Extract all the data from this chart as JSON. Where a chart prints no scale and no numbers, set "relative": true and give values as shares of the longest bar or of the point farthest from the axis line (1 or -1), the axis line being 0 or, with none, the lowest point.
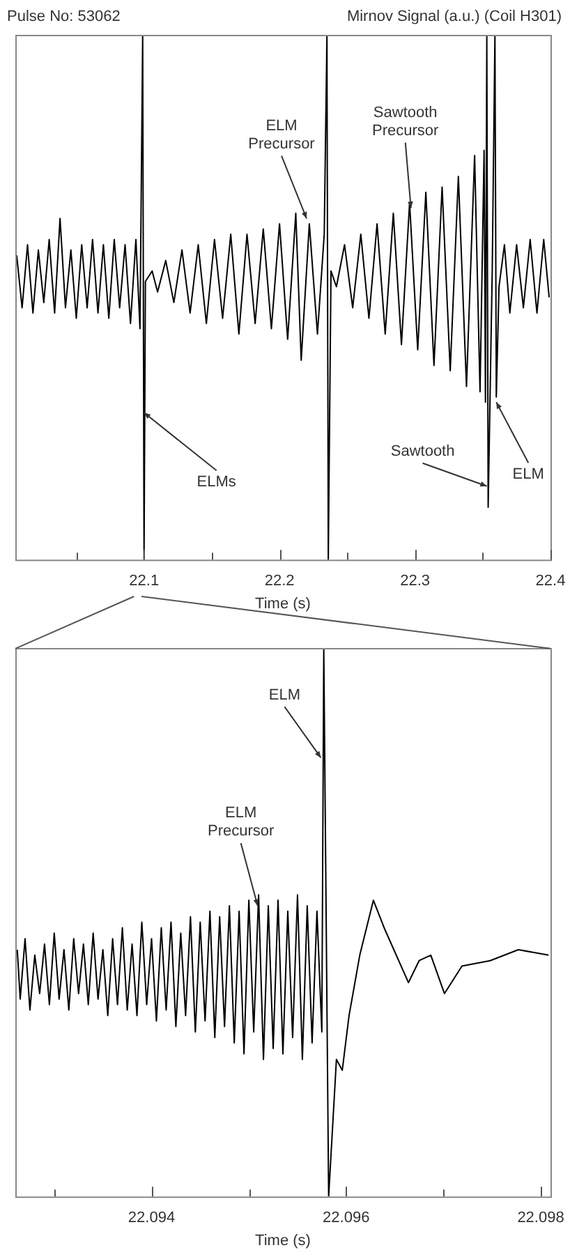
{
  "chart_data": [
    {
      "type": "line",
      "title": "Pulse No: 53062",
      "ylabel": "Mirnov Signal (a.u.) (Coil H301)",
      "xlabel": "Time (s)",
      "relative": true,
      "legend": false,
      "grid": false,
      "marker": "none",
      "line_style": "solid",
      "xlim": [
        22.005,
        22.4
      ],
      "xticks": [
        {
          "value": 22.05,
          "label": null
        },
        22.1,
        {
          "value": 22.15,
          "label": null
        },
        22.2,
        {
          "value": 22.25,
          "label": null
        },
        22.3,
        {
          "value": 22.35,
          "label": null
        },
        22.4
      ],
      "annotations": [
        {
          "text": "ELM Precursor",
          "x": 22.22,
          "y": 0.65
        },
        {
          "text": "Sawtooth Precursor",
          "x": 22.297,
          "y": 0.67
        },
        {
          "text": "ELMs",
          "x": 22.1,
          "y": 0.28
        },
        {
          "text": "Sawtooth",
          "x": 22.353,
          "y": 0.14
        },
        {
          "text": "ELM",
          "x": 22.36,
          "y": 0.3
        }
      ],
      "series": [
        {
          "color": "#000000",
          "x": [
            22.006,
            22.01,
            22.014,
            22.018,
            22.022,
            22.026,
            22.03,
            22.034,
            22.038,
            22.042,
            22.046,
            22.05,
            22.054,
            22.058,
            22.062,
            22.066,
            22.07,
            22.074,
            22.078,
            22.082,
            22.086,
            22.09,
            22.094,
            22.097,
            22.099,
            22.1,
            22.101,
            22.106,
            22.11,
            22.116,
            22.122,
            22.128,
            22.134,
            22.14,
            22.146,
            22.152,
            22.158,
            22.164,
            22.17,
            22.176,
            22.182,
            22.188,
            22.194,
            22.2,
            22.206,
            22.212,
            22.216,
            22.222,
            22.228,
            22.233,
            22.235,
            22.236,
            22.238,
            22.242,
            22.248,
            22.254,
            22.26,
            22.266,
            22.272,
            22.278,
            22.284,
            22.29,
            22.296,
            22.302,
            22.308,
            22.314,
            22.32,
            22.326,
            22.332,
            22.338,
            22.344,
            22.348,
            22.351,
            22.352,
            22.353,
            22.354,
            22.357,
            22.359,
            22.36,
            22.362,
            22.366,
            22.37,
            22.375,
            22.38,
            22.385,
            22.39,
            22.395,
            22.399
          ],
          "values": [
            0.58,
            0.48,
            0.6,
            0.47,
            0.59,
            0.49,
            0.61,
            0.47,
            0.65,
            0.48,
            0.59,
            0.46,
            0.6,
            0.48,
            0.61,
            0.47,
            0.6,
            0.46,
            0.61,
            0.48,
            0.6,
            0.45,
            0.61,
            0.44,
            1.0,
            0.0,
            0.53,
            0.55,
            0.51,
            0.57,
            0.49,
            0.59,
            0.47,
            0.6,
            0.45,
            0.61,
            0.46,
            0.62,
            0.43,
            0.62,
            0.45,
            0.63,
            0.44,
            0.64,
            0.42,
            0.66,
            0.38,
            0.64,
            0.43,
            0.62,
            1.0,
            0.0,
            0.55,
            0.52,
            0.6,
            0.48,
            0.62,
            0.46,
            0.64,
            0.43,
            0.66,
            0.41,
            0.68,
            0.4,
            0.7,
            0.37,
            0.71,
            0.36,
            0.73,
            0.33,
            0.77,
            0.32,
            0.78,
            0.3,
            1.0,
            0.1,
            0.55,
            1.0,
            0.31,
            0.52,
            0.6,
            0.47,
            0.6,
            0.48,
            0.61,
            0.47,
            0.61,
            0.5
          ]
        }
      ]
    },
    {
      "type": "line",
      "xlabel": "Time (s)",
      "relative": true,
      "legend": false,
      "grid": false,
      "marker": "none",
      "line_style": "solid",
      "xlim": [
        22.0926,
        22.0981
      ],
      "xticks": [
        {
          "value": 22.093,
          "label": null
        },
        22.094,
        {
          "value": 22.095,
          "label": null
        },
        22.096,
        {
          "value": 22.097,
          "label": null
        },
        22.098
      ],
      "annotations": [
        {
          "text": "ELM",
          "x": 22.09574,
          "y": 0.8
        },
        {
          "text": "ELM Precursor",
          "x": 22.09509,
          "y": 0.53
        }
      ],
      "series": [
        {
          "color": "#000000",
          "x": [
            22.09262,
            22.09265,
            22.0927,
            22.09275,
            22.0928,
            22.09285,
            22.0929,
            22.09295,
            22.093,
            22.09305,
            22.0931,
            22.09315,
            22.0932,
            22.09325,
            22.0933,
            22.09335,
            22.0934,
            22.09345,
            22.0935,
            22.09355,
            22.0936,
            22.09365,
            22.0937,
            22.09375,
            22.0938,
            22.09385,
            22.0939,
            22.09395,
            22.094,
            22.09405,
            22.0941,
            22.09415,
            22.0942,
            22.09425,
            22.0943,
            22.09435,
            22.0944,
            22.09445,
            22.0945,
            22.09455,
            22.0946,
            22.09465,
            22.0947,
            22.09475,
            22.0948,
            22.09485,
            22.0949,
            22.09495,
            22.095,
            22.09505,
            22.0951,
            22.09515,
            22.0952,
            22.09525,
            22.0953,
            22.09535,
            22.0954,
            22.09545,
            22.0955,
            22.09555,
            22.0956,
            22.09565,
            22.0957,
            22.09575,
            22.09577,
            22.09582,
            22.0959,
            22.09596,
            22.09603,
            22.09614,
            22.09628,
            22.09639,
            22.09664,
            22.09675,
            22.09687,
            22.09701,
            22.09719,
            22.09748,
            22.09777,
            22.09808
          ],
          "values": [
            0.45,
            0.36,
            0.47,
            0.34,
            0.44,
            0.37,
            0.46,
            0.35,
            0.48,
            0.36,
            0.45,
            0.34,
            0.47,
            0.37,
            0.46,
            0.35,
            0.48,
            0.36,
            0.45,
            0.33,
            0.47,
            0.35,
            0.49,
            0.34,
            0.46,
            0.33,
            0.5,
            0.35,
            0.47,
            0.32,
            0.49,
            0.34,
            0.5,
            0.31,
            0.48,
            0.33,
            0.51,
            0.3,
            0.5,
            0.32,
            0.52,
            0.29,
            0.51,
            0.31,
            0.53,
            0.28,
            0.52,
            0.26,
            0.54,
            0.3,
            0.55,
            0.25,
            0.53,
            0.27,
            0.54,
            0.26,
            0.52,
            0.29,
            0.55,
            0.25,
            0.53,
            0.28,
            0.52,
            0.3,
            1.0,
            0.0,
            0.25,
            0.23,
            0.33,
            0.44,
            0.54,
            0.49,
            0.39,
            0.43,
            0.44,
            0.37,
            0.42,
            0.43,
            0.45,
            0.44
          ]
        }
      ]
    }
  ]
}
